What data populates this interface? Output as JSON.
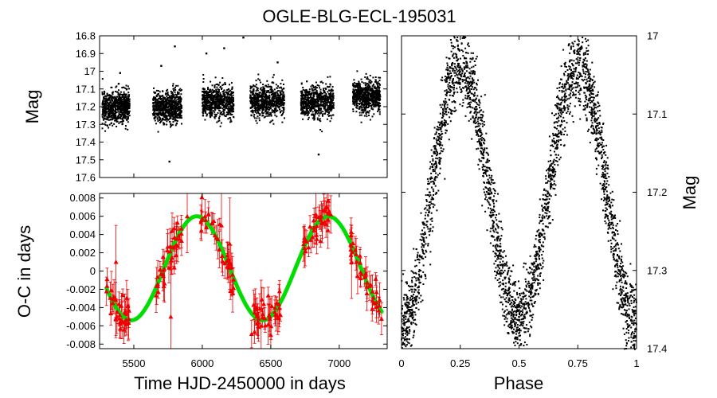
{
  "title": "OGLE-BLG-ECL-195031",
  "chart_data": [
    {
      "id": "lightcurve",
      "type": "scatter",
      "ylabel": "Mag",
      "xlim": [
        5250,
        7350
      ],
      "ylim": [
        17.6,
        16.8
      ],
      "yticks": [
        "16.8",
        "16.9",
        "17",
        "17.1",
        "17.2",
        "17.3",
        "17.4",
        "17.5",
        "17.6"
      ],
      "seasons": [
        {
          "start": 5270,
          "end": 5470,
          "mean_mag": 17.2
        },
        {
          "start": 5640,
          "end": 5850,
          "mean_mag": 17.2
        },
        {
          "start": 6000,
          "end": 6230,
          "mean_mag": 17.17
        },
        {
          "start": 6350,
          "end": 6600,
          "mean_mag": 17.17
        },
        {
          "start": 6720,
          "end": 6960,
          "mean_mag": 17.17
        },
        {
          "start": 7100,
          "end": 7300,
          "mean_mag": 17.14
        }
      ],
      "scatter_sigma": 0.045,
      "outliers": [
        {
          "x": 5400,
          "y": 17.01
        },
        {
          "x": 5700,
          "y": 16.97
        },
        {
          "x": 5800,
          "y": 16.86
        },
        {
          "x": 6030,
          "y": 16.9
        },
        {
          "x": 6160,
          "y": 16.87
        },
        {
          "x": 6300,
          "y": 16.81
        },
        {
          "x": 6550,
          "y": 16.95
        },
        {
          "x": 5760,
          "y": 17.51
        },
        {
          "x": 6850,
          "y": 17.47
        }
      ]
    },
    {
      "id": "oc",
      "type": "scatter",
      "xlabel": "Time HJD-2450000 in days",
      "ylabel": "O-C in days",
      "xlim": [
        5250,
        7350
      ],
      "ylim": [
        -0.0085,
        0.0085
      ],
      "xticks": [
        "5500",
        "6000",
        "6500",
        "7000"
      ],
      "yticks": [
        "0.008",
        "0.006",
        "0.004",
        "0.002",
        "0",
        "-0.002",
        "-0.004",
        "-0.006",
        "-0.008"
      ],
      "fit": {
        "mean": 0.0003,
        "amplitude": 0.0057,
        "period": 960,
        "phase_zero_x": 5720,
        "x_range": [
          5300,
          7310
        ],
        "color": "#00dd00"
      },
      "points_color": "#ee0000",
      "seasons": [
        [
          5300,
          5470
        ],
        [
          5660,
          5850
        ],
        [
          5990,
          6230
        ],
        [
          6360,
          6580
        ],
        [
          6730,
          6960
        ],
        [
          7080,
          7310
        ]
      ],
      "noise": 0.0015,
      "error_bar_typical": 0.0012,
      "long_error_bars": [
        {
          "x": 5370,
          "y": 0.001,
          "err": 0.004
        },
        {
          "x": 5770,
          "y": -0.005,
          "err": 0.006
        },
        {
          "x": 5890,
          "y": 0.006,
          "err": 0.004
        },
        {
          "x": 6140,
          "y": 0.005,
          "err": 0.004
        },
        {
          "x": 6200,
          "y": 0.003,
          "err": 0.005
        },
        {
          "x": 6430,
          "y": -0.006,
          "err": 0.005
        },
        {
          "x": 6500,
          "y": -0.007,
          "err": 0.004
        },
        {
          "x": 6830,
          "y": 0.006,
          "err": 0.003
        },
        {
          "x": 7090,
          "y": 0.001,
          "err": 0.004
        }
      ]
    },
    {
      "id": "phased",
      "type": "scatter",
      "xlabel": "Phase",
      "ylabel": "Mag",
      "xlim": [
        0,
        1
      ],
      "ylim": [
        17.0,
        17.4
      ],
      "xticks": [
        "0",
        "0.25",
        "0.5",
        "0.75",
        "1"
      ],
      "yticks": [
        "17",
        "17.1",
        "17.2",
        "17.3",
        "17.4"
      ],
      "max_mag": 17.04,
      "primary_min_mag": 17.37,
      "secondary_min_mag": 17.36,
      "scatter_sigma": 0.025
    }
  ]
}
